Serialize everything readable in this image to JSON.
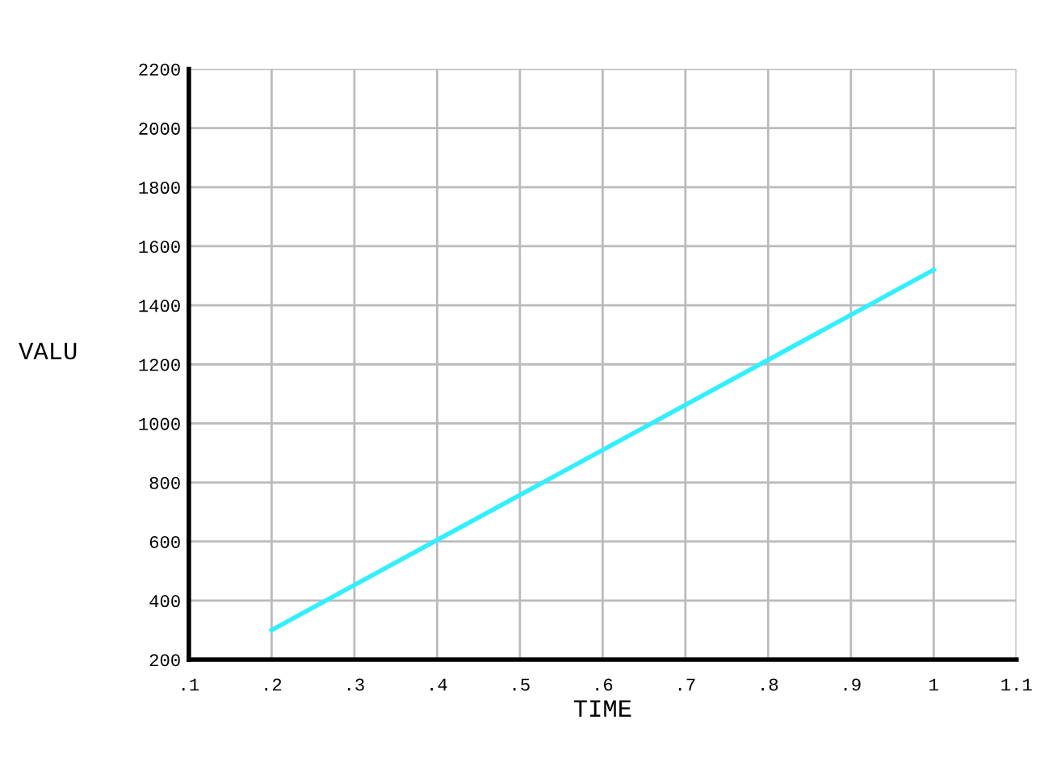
{
  "chart_data": {
    "type": "line",
    "xlabel": "TIME",
    "ylabel": "VALU",
    "series": [
      {
        "color": "#33eeff",
        "x": [
          0.2,
          0.6,
          1.0
        ],
        "values": [
          300,
          910,
          1520
        ]
      }
    ],
    "xlim": [
      0.1,
      1.1
    ],
    "xticks": [
      {
        "value": 0.1,
        "label": ".1"
      },
      {
        "value": 0.2,
        "label": ".2"
      },
      {
        "value": 0.3,
        "label": ".3"
      },
      {
        "value": 0.4,
        "label": ".4"
      },
      {
        "value": 0.5,
        "label": ".5"
      },
      {
        "value": 0.6,
        "label": ".6"
      },
      {
        "value": 0.7,
        "label": ".7"
      },
      {
        "value": 0.8,
        "label": ".8"
      },
      {
        "value": 0.9,
        "label": ".9"
      },
      {
        "value": 1.0,
        "label": "1"
      },
      {
        "value": 1.1,
        "label": "1.1"
      }
    ],
    "ylim": [
      200,
      2200
    ],
    "yticks": [
      200,
      400,
      600,
      800,
      1000,
      1200,
      1400,
      1600,
      1800,
      2000,
      2200
    ],
    "grid": true,
    "marker": "none",
    "line_style": "solid"
  }
}
